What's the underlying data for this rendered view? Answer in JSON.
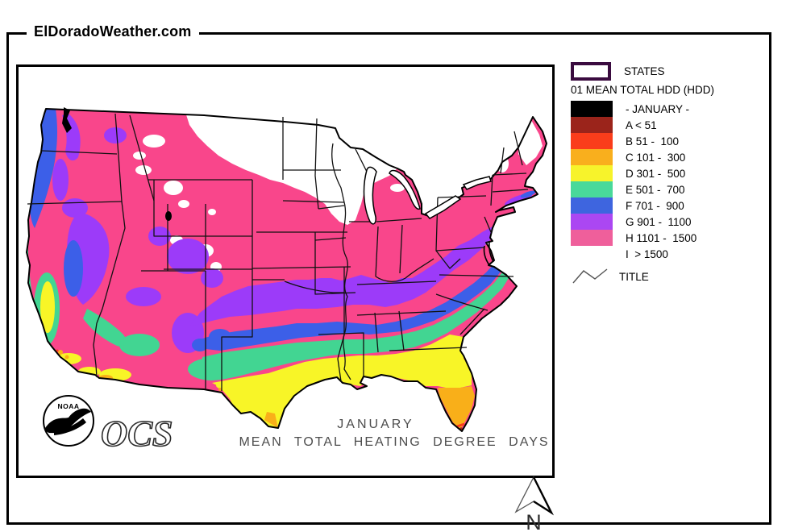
{
  "page": {
    "site_title": "ElDoradoWeather.com"
  },
  "map": {
    "title_line1": "JANUARY",
    "title_line2": "MEAN TOTAL HEATING DEGREE DAYS",
    "noaa_label": "NOAA",
    "ocs_label": "OCS",
    "compass_label": "N"
  },
  "legend": {
    "states_label": "STATES",
    "heading": "01 MEAN TOTAL HDD (HDD)",
    "states_box_border": "#3A0B3F",
    "items": [
      {
        "key": "JAN",
        "label": "- JANUARY -",
        "color": "#000000"
      },
      {
        "key": "A",
        "label": "A < 51",
        "color": "#9B241B"
      },
      {
        "key": "B",
        "label": "B 51 -  100",
        "color": "#FA3D1B"
      },
      {
        "key": "C",
        "label": "C 101 -  300",
        "color": "#F9AF1D"
      },
      {
        "key": "D",
        "label": "D 301 -  500",
        "color": "#F7F32B"
      },
      {
        "key": "E",
        "label": "E 501 -  700",
        "color": "#49D99A"
      },
      {
        "key": "F",
        "label": "F 701 -  900",
        "color": "#3E65DF"
      },
      {
        "key": "G",
        "label": "G 901 -  1100",
        "color": "#AB47F2"
      },
      {
        "key": "H",
        "label": "H 1101 -  1500",
        "color": "#EF5F9B"
      },
      {
        "key": "I",
        "label": "I  > 1500",
        "color": "#FFFFFF"
      }
    ],
    "title_symbol_label": "TITLE"
  },
  "palette": {
    "A": "#9B241B",
    "B": "#F93E1C",
    "C": "#F9AF19",
    "D": "#F8F527",
    "E": "#42D592",
    "F": "#3C5FE8",
    "G": "#9C3BF9",
    "H": "#F9468B",
    "I": "#FFFFFF",
    "outline": "#000000"
  }
}
